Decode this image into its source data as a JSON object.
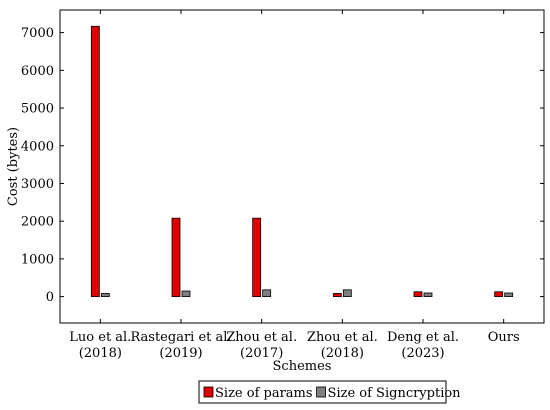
{
  "chart_data": {
    "type": "bar",
    "xlabel": "Schemes",
    "ylabel": "Cost (bytes)",
    "categories": [
      [
        "Luo et al.",
        "(2018)"
      ],
      [
        "Rastegari et al.",
        "(2019)"
      ],
      [
        "Zhou et al.",
        "(2017)"
      ],
      [
        "Zhou et al.",
        "(2018)"
      ],
      [
        "Deng et al.",
        "(2023)"
      ],
      [
        "Ours"
      ]
    ],
    "series": [
      {
        "name": "Size of params",
        "color": "#e00000",
        "values": [
          7168,
          2080,
          2080,
          84,
          128,
          128
        ]
      },
      {
        "name": "Size of Signcryption",
        "color": "#7f7f7f",
        "values": [
          84,
          148,
          180,
          180,
          96,
          96
        ]
      }
    ],
    "ylim": [
      -700,
      7600
    ],
    "yticks": [
      0,
      1000,
      2000,
      3000,
      4000,
      5000,
      6000,
      7000
    ],
    "grid": false,
    "legend_position": "bottom"
  }
}
